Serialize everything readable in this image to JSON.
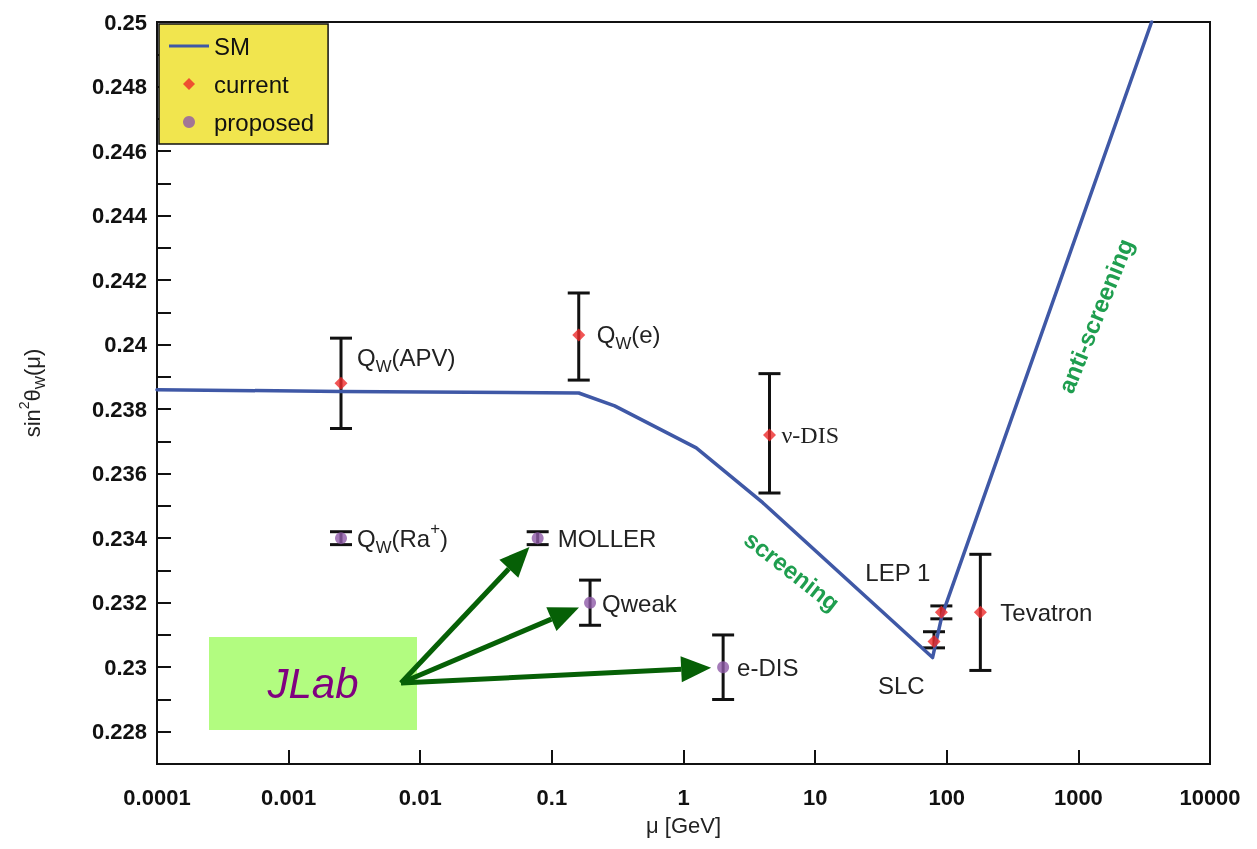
{
  "chart_data": {
    "type": "scatter",
    "xlabel": "μ [GeV]",
    "ylabel": "sin$^{2}$θ$_{W}$(μ)",
    "log": "x",
    "xlim": [
      0.0001,
      10000
    ],
    "xticks": [
      0.0001,
      0.001,
      0.01,
      0.1,
      1,
      10,
      100,
      1000,
      10000
    ],
    "ylim": [
      0.227,
      0.25
    ],
    "yticks": [
      {
        "value": 0.227,
        "label": null
      },
      0.228,
      {
        "value": 0.229,
        "label": null
      },
      0.23,
      {
        "value": 0.231,
        "label": null
      },
      0.232,
      {
        "value": 0.233,
        "label": null
      },
      0.234,
      {
        "value": 0.235,
        "label": null
      },
      0.236,
      {
        "value": 0.237,
        "label": null
      },
      0.238,
      {
        "value": 0.239,
        "label": null
      },
      0.24,
      {
        "value": 0.241,
        "label": null
      },
      0.242,
      {
        "value": 0.243,
        "label": null
      },
      0.244,
      {
        "value": 0.245,
        "label": null
      },
      0.246,
      {
        "value": 0.247,
        "label": null
      },
      0.248,
      {
        "value": 0.249,
        "label": null
      },
      0.25
    ],
    "grid": false,
    "legend": "top left",
    "series": [
      {
        "name": "SM",
        "type": "line",
        "color": "#3f58a6",
        "marker": "none",
        "line_style": "solid",
        "x": [
          0.0001,
          0.0025,
          0.16,
          0.3,
          1.25,
          4,
          78,
          92,
          3600
        ],
        "values": [
          0.2386,
          0.23855,
          0.2385,
          0.2381,
          0.2368,
          0.2351,
          0.2303,
          0.2316,
          0.25
        ]
      },
      {
        "name": "current",
        "color": "#ee2a2a",
        "marker": "diamond",
        "x": [
          0.0025,
          0.16,
          4.5,
          91,
          80,
          180
        ],
        "values": [
          0.2388,
          0.2403,
          0.2372,
          0.2317,
          0.2308,
          0.2317
        ],
        "errors": [
          [
            0.2374,
            0.2402
          ],
          [
            0.2389,
            0.2416
          ],
          [
            0.2354,
            0.2391
          ],
          [
            0.2315,
            0.2319
          ],
          [
            0.2306,
            0.2311
          ],
          [
            0.2299,
            0.2335
          ]
        ]
      },
      {
        "name": "proposed",
        "color": "#8e5aa8",
        "marker": "circle",
        "x": [
          0.0025,
          0.078,
          0.195,
          2.0
        ],
        "values": [
          0.234,
          0.234,
          0.232,
          0.23
        ],
        "errors": [
          [
            0.2338,
            0.2342
          ],
          [
            0.2338,
            0.2342
          ],
          [
            0.2313,
            0.2327
          ],
          [
            0.229,
            0.231
          ]
        ]
      }
    ],
    "annotations": [
      {
        "text": "Q$_{W}$(APV)",
        "x": 0.0025,
        "y": 0.2388
      },
      {
        "text": "Q$_{W}$(e)",
        "x": 0.16,
        "y": 0.2403
      },
      {
        "text": "ν-DIS",
        "x": 4.5,
        "y": 0.2372
      },
      {
        "text": "Q$_{W}$(Ra$^{+}$)",
        "x": 0.0025,
        "y": 0.234
      },
      {
        "text": "MOLLER",
        "x": 0.078,
        "y": 0.234
      },
      {
        "text": "Qweak",
        "x": 0.195,
        "y": 0.232
      },
      {
        "text": "e-DIS",
        "x": 2.0,
        "y": 0.23
      },
      {
        "text": "LEP 1",
        "x": 91,
        "y": 0.2317
      },
      {
        "text": "SLC",
        "x": 80,
        "y": 0.2308
      },
      {
        "text": "Tevatron",
        "x": 180,
        "y": 0.2317
      },
      {
        "text": "screening",
        "x": 6.5,
        "y": 0.2343
      },
      {
        "text": "anti-screening",
        "x": 600,
        "y": 0.2409
      },
      "JLab"
    ]
  }
}
